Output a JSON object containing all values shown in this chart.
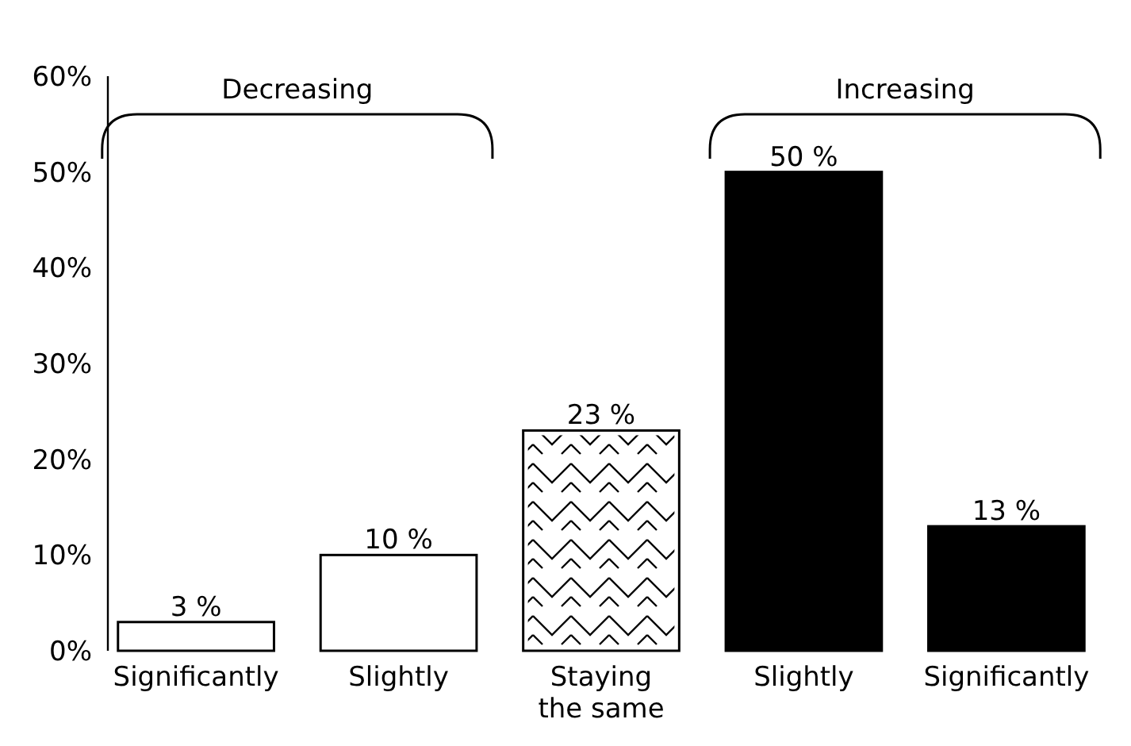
{
  "chart_data": {
    "type": "bar",
    "categories": [
      "Significantly",
      "Slightly",
      "Staying the same",
      "Slightly",
      "Significantly"
    ],
    "values": [
      3,
      10,
      23,
      50,
      13
    ],
    "value_labels": [
      "3 %",
      "10 %",
      "23 %",
      "50 %",
      "13 %"
    ],
    "colors": [
      "#ffffff",
      "#ffffff",
      "#ffffff",
      "#000000",
      "#000000"
    ],
    "ylim": [
      0,
      60
    ],
    "yticks": [
      {
        "value": 0,
        "label": "0%"
      },
      {
        "value": 10,
        "label": "10%"
      },
      {
        "value": 20,
        "label": "20%"
      },
      {
        "value": 30,
        "label": "30%"
      },
      {
        "value": 40,
        "label": "40%"
      },
      {
        "value": 50,
        "label": "50%"
      },
      {
        "value": 60,
        "label": "60%"
      }
    ],
    "annotations": [
      "Decreasing",
      "Increasing"
    ]
  }
}
